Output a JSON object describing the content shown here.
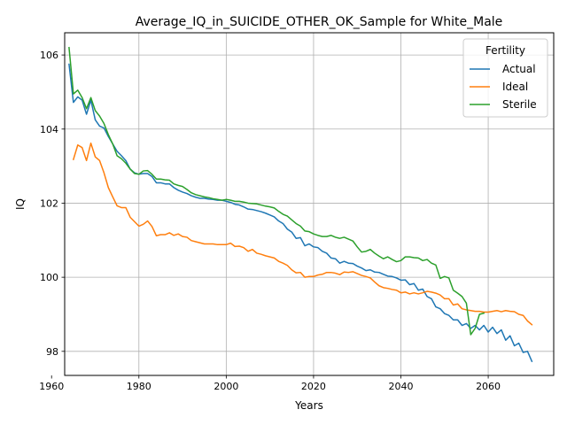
{
  "chart_data": {
    "type": "line",
    "title": "Average_IQ_in_SUICIDE_OTHER_OK_Sample for White_Male",
    "xlabel": "Years",
    "ylabel": "IQ",
    "xlim": [
      1963,
      2075
    ],
    "ylim": [
      97.35,
      106.6
    ],
    "xticks": [
      1960,
      1980,
      2000,
      2020,
      2040,
      2060
    ],
    "yticks": [
      98,
      100,
      102,
      104,
      106
    ],
    "grid": true,
    "legend": {
      "title": "Fertility",
      "placement": "top-right"
    },
    "series": [
      {
        "name": "Actual",
        "color": "#1f77b4",
        "points": [
          [
            1964,
            105.75
          ],
          [
            1965,
            104.72
          ],
          [
            1966,
            104.87
          ],
          [
            1967,
            104.78
          ],
          [
            1968,
            104.4
          ],
          [
            1969,
            104.78
          ],
          [
            1970,
            104.25
          ],
          [
            1971,
            104.08
          ],
          [
            1972,
            104.03
          ],
          [
            1973,
            103.8
          ],
          [
            1974,
            103.6
          ],
          [
            1975,
            103.4
          ],
          [
            1976,
            103.28
          ],
          [
            1977,
            103.15
          ],
          [
            1978,
            102.92
          ],
          [
            1979,
            102.82
          ],
          [
            1980,
            102.78
          ],
          [
            1981,
            102.8
          ],
          [
            1982,
            102.8
          ],
          [
            1983,
            102.72
          ],
          [
            1984,
            102.55
          ],
          [
            1985,
            102.55
          ],
          [
            1986,
            102.52
          ],
          [
            1987,
            102.52
          ],
          [
            1988,
            102.42
          ],
          [
            1989,
            102.35
          ],
          [
            1990,
            102.3
          ],
          [
            1991,
            102.26
          ],
          [
            1992,
            102.2
          ],
          [
            1993,
            102.16
          ],
          [
            1994,
            102.13
          ],
          [
            1995,
            102.13
          ],
          [
            1996,
            102.11
          ],
          [
            1997,
            102.1
          ],
          [
            1998,
            102.08
          ],
          [
            1999,
            102.08
          ],
          [
            2000,
            102.05
          ],
          [
            2001,
            102.02
          ],
          [
            2002,
            101.97
          ],
          [
            2003,
            101.95
          ],
          [
            2004,
            101.9
          ],
          [
            2005,
            101.84
          ],
          [
            2006,
            101.83
          ],
          [
            2007,
            101.8
          ],
          [
            2008,
            101.77
          ],
          [
            2009,
            101.73
          ],
          [
            2010,
            101.68
          ],
          [
            2011,
            101.63
          ],
          [
            2012,
            101.52
          ],
          [
            2013,
            101.45
          ],
          [
            2014,
            101.3
          ],
          [
            2015,
            101.22
          ],
          [
            2016,
            101.05
          ],
          [
            2017,
            101.07
          ],
          [
            2018,
            100.85
          ],
          [
            2019,
            100.9
          ],
          [
            2020,
            100.82
          ],
          [
            2021,
            100.8
          ],
          [
            2022,
            100.7
          ],
          [
            2023,
            100.65
          ],
          [
            2024,
            100.52
          ],
          [
            2025,
            100.5
          ],
          [
            2026,
            100.38
          ],
          [
            2027,
            100.43
          ],
          [
            2028,
            100.38
          ],
          [
            2029,
            100.37
          ],
          [
            2030,
            100.3
          ],
          [
            2031,
            100.25
          ],
          [
            2032,
            100.18
          ],
          [
            2033,
            100.2
          ],
          [
            2034,
            100.14
          ],
          [
            2035,
            100.13
          ],
          [
            2036,
            100.08
          ],
          [
            2037,
            100.03
          ],
          [
            2038,
            100.02
          ],
          [
            2039,
            99.98
          ],
          [
            2040,
            99.92
          ],
          [
            2041,
            99.93
          ],
          [
            2042,
            99.8
          ],
          [
            2043,
            99.83
          ],
          [
            2044,
            99.65
          ],
          [
            2045,
            99.68
          ],
          [
            2046,
            99.48
          ],
          [
            2047,
            99.42
          ],
          [
            2048,
            99.2
          ],
          [
            2049,
            99.15
          ],
          [
            2050,
            99.02
          ],
          [
            2051,
            98.97
          ],
          [
            2052,
            98.85
          ],
          [
            2053,
            98.85
          ],
          [
            2054,
            98.7
          ],
          [
            2055,
            98.75
          ],
          [
            2056,
            98.62
          ],
          [
            2057,
            98.7
          ],
          [
            2058,
            98.58
          ],
          [
            2059,
            98.7
          ],
          [
            2060,
            98.52
          ],
          [
            2061,
            98.65
          ],
          [
            2062,
            98.48
          ],
          [
            2063,
            98.58
          ],
          [
            2064,
            98.3
          ],
          [
            2065,
            98.42
          ],
          [
            2066,
            98.15
          ],
          [
            2067,
            98.22
          ],
          [
            2068,
            97.97
          ],
          [
            2069,
            98.0
          ],
          [
            2070,
            97.73
          ]
        ]
      },
      {
        "name": "Ideal",
        "color": "#ff7f0e",
        "points": [
          [
            1965,
            103.18
          ],
          [
            1966,
            103.57
          ],
          [
            1967,
            103.5
          ],
          [
            1968,
            103.15
          ],
          [
            1969,
            103.62
          ],
          [
            1970,
            103.25
          ],
          [
            1971,
            103.15
          ],
          [
            1972,
            102.82
          ],
          [
            1973,
            102.42
          ],
          [
            1974,
            102.17
          ],
          [
            1975,
            101.93
          ],
          [
            1976,
            101.88
          ],
          [
            1977,
            101.88
          ],
          [
            1978,
            101.62
          ],
          [
            1979,
            101.5
          ],
          [
            1980,
            101.38
          ],
          [
            1981,
            101.43
          ],
          [
            1982,
            101.52
          ],
          [
            1983,
            101.37
          ],
          [
            1984,
            101.12
          ],
          [
            1985,
            101.15
          ],
          [
            1986,
            101.15
          ],
          [
            1987,
            101.2
          ],
          [
            1988,
            101.13
          ],
          [
            1989,
            101.17
          ],
          [
            1990,
            101.1
          ],
          [
            1991,
            101.08
          ],
          [
            1992,
            100.99
          ],
          [
            1993,
            100.96
          ],
          [
            1994,
            100.93
          ],
          [
            1995,
            100.9
          ],
          [
            1996,
            100.9
          ],
          [
            1997,
            100.9
          ],
          [
            1998,
            100.88
          ],
          [
            1999,
            100.88
          ],
          [
            2000,
            100.88
          ],
          [
            2001,
            100.92
          ],
          [
            2002,
            100.83
          ],
          [
            2003,
            100.84
          ],
          [
            2004,
            100.8
          ],
          [
            2005,
            100.7
          ],
          [
            2006,
            100.75
          ],
          [
            2007,
            100.65
          ],
          [
            2008,
            100.62
          ],
          [
            2009,
            100.58
          ],
          [
            2010,
            100.55
          ],
          [
            2011,
            100.52
          ],
          [
            2012,
            100.43
          ],
          [
            2013,
            100.38
          ],
          [
            2014,
            100.32
          ],
          [
            2015,
            100.2
          ],
          [
            2016,
            100.12
          ],
          [
            2017,
            100.13
          ],
          [
            2018,
            100.0
          ],
          [
            2019,
            100.02
          ],
          [
            2020,
            100.02
          ],
          [
            2021,
            100.06
          ],
          [
            2022,
            100.08
          ],
          [
            2023,
            100.13
          ],
          [
            2024,
            100.13
          ],
          [
            2025,
            100.11
          ],
          [
            2026,
            100.07
          ],
          [
            2027,
            100.14
          ],
          [
            2028,
            100.13
          ],
          [
            2029,
            100.15
          ],
          [
            2030,
            100.1
          ],
          [
            2031,
            100.05
          ],
          [
            2032,
            100.02
          ],
          [
            2033,
            99.98
          ],
          [
            2034,
            99.87
          ],
          [
            2035,
            99.77
          ],
          [
            2036,
            99.72
          ],
          [
            2037,
            99.7
          ],
          [
            2038,
            99.67
          ],
          [
            2039,
            99.65
          ],
          [
            2040,
            99.58
          ],
          [
            2041,
            99.6
          ],
          [
            2042,
            99.55
          ],
          [
            2043,
            99.58
          ],
          [
            2044,
            99.55
          ],
          [
            2045,
            99.58
          ],
          [
            2046,
            99.62
          ],
          [
            2047,
            99.6
          ],
          [
            2048,
            99.57
          ],
          [
            2049,
            99.52
          ],
          [
            2050,
            99.42
          ],
          [
            2051,
            99.42
          ],
          [
            2052,
            99.25
          ],
          [
            2053,
            99.28
          ],
          [
            2054,
            99.15
          ],
          [
            2055,
            99.12
          ],
          [
            2056,
            99.1
          ],
          [
            2057,
            99.08
          ],
          [
            2058,
            99.08
          ],
          [
            2059,
            99.06
          ],
          [
            2060,
            99.06
          ],
          [
            2061,
            99.08
          ],
          [
            2062,
            99.1
          ],
          [
            2063,
            99.07
          ],
          [
            2064,
            99.1
          ],
          [
            2065,
            99.08
          ],
          [
            2066,
            99.07
          ],
          [
            2067,
            99.0
          ],
          [
            2068,
            98.97
          ],
          [
            2069,
            98.82
          ],
          [
            2070,
            98.72
          ]
        ]
      },
      {
        "name": "Sterile",
        "color": "#2ca02c",
        "points": [
          [
            1964,
            106.2
          ],
          [
            1965,
            104.95
          ],
          [
            1966,
            105.05
          ],
          [
            1967,
            104.85
          ],
          [
            1968,
            104.55
          ],
          [
            1969,
            104.85
          ],
          [
            1970,
            104.5
          ],
          [
            1971,
            104.35
          ],
          [
            1972,
            104.15
          ],
          [
            1973,
            103.85
          ],
          [
            1974,
            103.6
          ],
          [
            1975,
            103.28
          ],
          [
            1976,
            103.2
          ],
          [
            1977,
            103.08
          ],
          [
            1978,
            102.92
          ],
          [
            1979,
            102.8
          ],
          [
            1980,
            102.78
          ],
          [
            1981,
            102.87
          ],
          [
            1982,
            102.88
          ],
          [
            1983,
            102.78
          ],
          [
            1984,
            102.65
          ],
          [
            1985,
            102.65
          ],
          [
            1986,
            102.63
          ],
          [
            1987,
            102.62
          ],
          [
            1988,
            102.52
          ],
          [
            1989,
            102.48
          ],
          [
            1990,
            102.45
          ],
          [
            1991,
            102.37
          ],
          [
            1992,
            102.28
          ],
          [
            1993,
            102.23
          ],
          [
            1994,
            102.2
          ],
          [
            1995,
            102.17
          ],
          [
            1996,
            102.15
          ],
          [
            1997,
            102.12
          ],
          [
            1998,
            102.1
          ],
          [
            1999,
            102.08
          ],
          [
            2000,
            102.1
          ],
          [
            2001,
            102.08
          ],
          [
            2002,
            102.05
          ],
          [
            2003,
            102.05
          ],
          [
            2004,
            102.03
          ],
          [
            2005,
            102.0
          ],
          [
            2006,
            101.99
          ],
          [
            2007,
            101.98
          ],
          [
            2008,
            101.95
          ],
          [
            2009,
            101.92
          ],
          [
            2010,
            101.9
          ],
          [
            2011,
            101.87
          ],
          [
            2012,
            101.78
          ],
          [
            2013,
            101.7
          ],
          [
            2014,
            101.65
          ],
          [
            2015,
            101.55
          ],
          [
            2016,
            101.45
          ],
          [
            2017,
            101.38
          ],
          [
            2018,
            101.25
          ],
          [
            2019,
            101.23
          ],
          [
            2020,
            101.17
          ],
          [
            2021,
            101.13
          ],
          [
            2022,
            101.1
          ],
          [
            2023,
            101.1
          ],
          [
            2024,
            101.13
          ],
          [
            2025,
            101.08
          ],
          [
            2026,
            101.05
          ],
          [
            2027,
            101.08
          ],
          [
            2028,
            101.03
          ],
          [
            2029,
            100.98
          ],
          [
            2030,
            100.82
          ],
          [
            2031,
            100.68
          ],
          [
            2032,
            100.7
          ],
          [
            2033,
            100.75
          ],
          [
            2034,
            100.65
          ],
          [
            2035,
            100.57
          ],
          [
            2036,
            100.5
          ],
          [
            2037,
            100.55
          ],
          [
            2038,
            100.48
          ],
          [
            2039,
            100.42
          ],
          [
            2040,
            100.45
          ],
          [
            2041,
            100.55
          ],
          [
            2042,
            100.55
          ],
          [
            2043,
            100.53
          ],
          [
            2044,
            100.52
          ],
          [
            2045,
            100.45
          ],
          [
            2046,
            100.48
          ],
          [
            2047,
            100.38
          ],
          [
            2048,
            100.33
          ],
          [
            2049,
            99.97
          ],
          [
            2050,
            100.02
          ],
          [
            2051,
            99.98
          ],
          [
            2052,
            99.65
          ],
          [
            2053,
            99.57
          ],
          [
            2054,
            99.48
          ],
          [
            2055,
            99.3
          ],
          [
            2056,
            98.45
          ],
          [
            2057,
            98.62
          ],
          [
            2058,
            99.0
          ],
          [
            2059,
            99.03
          ]
        ]
      }
    ]
  }
}
